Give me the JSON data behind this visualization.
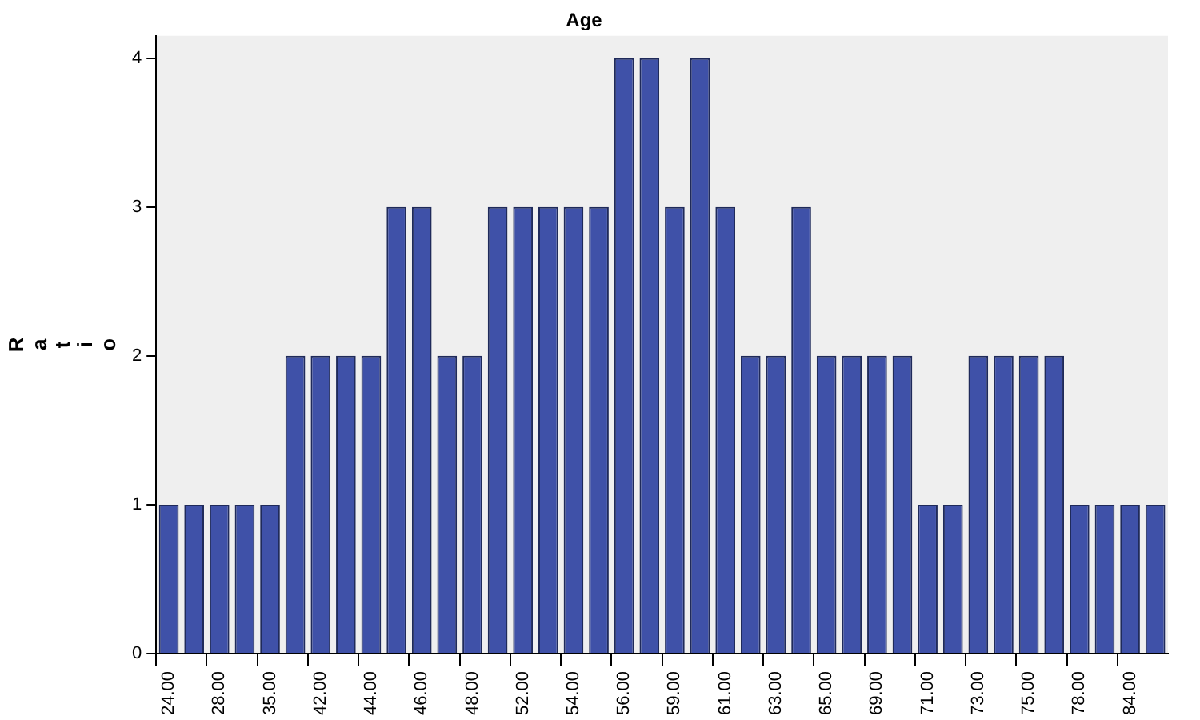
{
  "chart_data": {
    "type": "bar",
    "title": "Age",
    "ylabel": "Ratio",
    "categories": [
      "24.00",
      null,
      "28.00",
      null,
      "35.00",
      null,
      "42.00",
      null,
      "44.00",
      null,
      "46.00",
      null,
      "48.00",
      null,
      "52.00",
      null,
      "54.00",
      null,
      "56.00",
      null,
      "59.00",
      null,
      "61.00",
      null,
      "63.00",
      null,
      "65.00",
      null,
      "69.00",
      null,
      "71.00",
      null,
      "73.00",
      null,
      "75.00",
      null,
      "78.00",
      null,
      "84.00",
      null
    ],
    "values": [
      1,
      1,
      1,
      1,
      1,
      2,
      2,
      2,
      2,
      3,
      3,
      2,
      2,
      3,
      3,
      3,
      3,
      3,
      4,
      4,
      3,
      4,
      3,
      2,
      2,
      3,
      2,
      2,
      2,
      2,
      1,
      1,
      2,
      2,
      2,
      2,
      1,
      1,
      1,
      1
    ],
    "color": "#3f51a8",
    "ylim": [
      0,
      4.15
    ],
    "yticks": [
      0,
      1,
      2,
      3,
      4
    ],
    "grid": false,
    "legend": false
  }
}
